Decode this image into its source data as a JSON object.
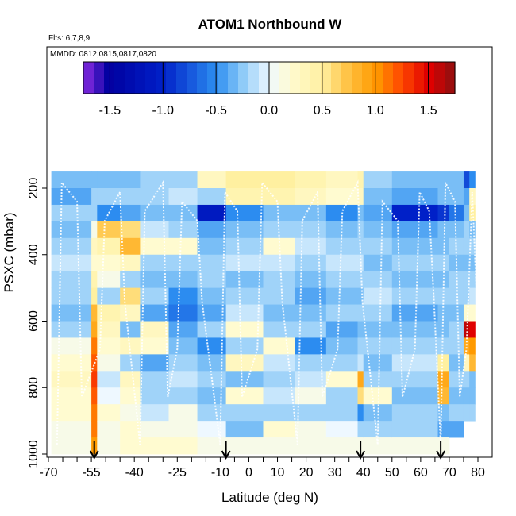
{
  "chart_data": {
    "type": "heatmap",
    "title": "ATOM1 Northbound W",
    "subtitle_flights": "Flts: 6,7,8,9",
    "subtitle_dates": "MMDD: 0812,0815,0817,0820",
    "xlabel": "Latitude (deg N)",
    "ylabel": "PSXC (mbar)",
    "xlim": [
      -70,
      82
    ],
    "ylim": [
      1010,
      160
    ],
    "x_ticks": [
      -70,
      -55,
      -40,
      -25,
      -10,
      0,
      10,
      20,
      30,
      40,
      50,
      60,
      70,
      80
    ],
    "x_tick_labels": [
      "-70",
      "-55",
      "-40",
      "-25",
      "-10",
      "0",
      "10",
      "20",
      "30",
      "40",
      "50",
      "60",
      "70",
      "80"
    ],
    "x_minor_ticks": [
      -65,
      -60,
      -50,
      -45,
      -35,
      -30,
      -20,
      -15,
      -5,
      5,
      15,
      25,
      35,
      45,
      55,
      65,
      75
    ],
    "y_ticks": [
      200,
      400,
      600,
      800,
      1000
    ],
    "y_tick_labels": [
      "200",
      "400",
      "600",
      "800",
      "1000"
    ],
    "colorbar": {
      "min": -1.75,
      "max": 1.75,
      "ticks": [
        -1.5,
        -1.0,
        -0.5,
        0.0,
        0.5,
        1.0,
        1.5
      ],
      "tick_labels": [
        "-1.5",
        "-1.0",
        "-0.5",
        "0.0",
        "0.5",
        "1.0",
        "1.5"
      ],
      "stops": [
        {
          "v": -1.75,
          "c": "#8a2be2"
        },
        {
          "v": -1.5,
          "c": "#0000a0"
        },
        {
          "v": -1.0,
          "c": "#0020c8"
        },
        {
          "v": -0.5,
          "c": "#2c8cf0"
        },
        {
          "v": -0.25,
          "c": "#8ccaf8"
        },
        {
          "v": 0.0,
          "c": "#eef8ff"
        },
        {
          "v": 0.2,
          "c": "#fffbd0"
        },
        {
          "v": 0.5,
          "c": "#fff0a0"
        },
        {
          "v": 0.75,
          "c": "#ffc040"
        },
        {
          "v": 1.0,
          "c": "#ff9a00"
        },
        {
          "v": 1.25,
          "c": "#ff4800"
        },
        {
          "v": 1.5,
          "c": "#e00000"
        },
        {
          "v": 1.75,
          "c": "#8b1010"
        }
      ]
    },
    "pressure_levels": [
      175,
      225,
      275,
      325,
      375,
      425,
      475,
      525,
      575,
      625,
      675,
      725,
      775,
      825,
      875,
      925,
      975
    ],
    "columns": [
      {
        "lat": [
          -69,
          -55
        ],
        "values": [
          -0.3,
          -0.4,
          -0.2,
          -0.3,
          -0.2,
          -0.1,
          -0.2,
          -0.2,
          -0.3,
          -0.2,
          0.1,
          0.2,
          0.3,
          0.2,
          0.2,
          0.1,
          0.1
        ]
      },
      {
        "lat": [
          -55,
          -53
        ],
        "values": [
          -0.3,
          -0.2,
          -0.2,
          0.1,
          0.3,
          0.2,
          0.4,
          0.5,
          0.8,
          0.9,
          1.1,
          1.2,
          1.3,
          1.2,
          1.1,
          1.1,
          1.0
        ]
      },
      {
        "lat": [
          -53,
          -45
        ],
        "values": [
          -0.3,
          -0.2,
          -0.5,
          0.7,
          0.4,
          0.2,
          0.1,
          -0.2,
          0.4,
          0.3,
          0.2,
          0.1,
          -0.1,
          0.0,
          0.2,
          0.1,
          0.1
        ]
      },
      {
        "lat": [
          -45,
          -38
        ],
        "values": [
          -0.3,
          -0.2,
          -0.4,
          0.6,
          0.8,
          0.3,
          -0.2,
          0.6,
          0.3,
          -0.3,
          0.3,
          -0.2,
          0.3,
          0.2,
          0.1,
          0.2,
          0.2
        ]
      },
      {
        "lat": [
          -38,
          -28
        ],
        "values": [
          -0.2,
          -0.2,
          -0.3,
          -0.1,
          0.2,
          -0.2,
          -0.3,
          -0.2,
          -0.4,
          0.3,
          0.2,
          -0.4,
          -0.2,
          -0.2,
          -0.1,
          0.1,
          0.2
        ]
      },
      {
        "lat": [
          -28,
          -18
        ],
        "values": [
          -0.2,
          -0.1,
          -0.3,
          -0.2,
          0.2,
          -0.2,
          -0.3,
          -0.5,
          -0.6,
          -0.4,
          -0.3,
          -0.2,
          -0.1,
          -0.2,
          0.1,
          0.1,
          0.2
        ]
      },
      {
        "lat": [
          -18,
          -8
        ],
        "values": [
          0.3,
          -0.2,
          -1.1,
          -0.4,
          -0.3,
          -0.2,
          -0.2,
          -0.3,
          -0.4,
          -0.2,
          -0.5,
          -0.3,
          -0.2,
          -0.3,
          -0.2,
          0.0,
          0.1
        ]
      },
      {
        "lat": [
          -8,
          5
        ],
        "values": [
          0.5,
          0.4,
          -0.5,
          -0.3,
          -0.2,
          -0.1,
          -0.3,
          -0.2,
          -0.1,
          0.2,
          -0.2,
          0.3,
          -0.3,
          0.2,
          -0.2,
          -0.3,
          0.1
        ]
      },
      {
        "lat": [
          5,
          16
        ],
        "values": [
          0.5,
          0.4,
          -0.3,
          -0.2,
          0.2,
          -0.1,
          -0.2,
          -0.2,
          -0.3,
          -0.2,
          0.2,
          -0.1,
          -0.2,
          -0.1,
          -0.2,
          0.2,
          0.1
        ]
      },
      {
        "lat": [
          16,
          27
        ],
        "values": [
          0.4,
          0.3,
          -0.3,
          -0.2,
          -0.1,
          -0.2,
          -0.3,
          -0.4,
          -0.3,
          -0.2,
          -0.5,
          -0.2,
          -0.1,
          0.1,
          -0.2,
          0.1,
          0.1
        ]
      },
      {
        "lat": [
          27,
          38
        ],
        "values": [
          0.3,
          0.2,
          -0.5,
          -0.3,
          -0.2,
          -0.1,
          -0.2,
          -0.3,
          -0.2,
          -0.4,
          -0.3,
          -0.2,
          0.2,
          -0.2,
          -0.2,
          0.0,
          0.1
        ]
      },
      {
        "lat": [
          38,
          40
        ],
        "values": [
          0.4,
          0.3,
          -0.3,
          -0.2,
          -0.2,
          -0.1,
          -0.2,
          -0.3,
          -0.2,
          -0.3,
          -0.2,
          -0.1,
          0.9,
          0.6,
          -0.5,
          -0.2,
          0.1
        ]
      },
      {
        "lat": [
          40,
          50
        ],
        "values": [
          -0.2,
          -0.3,
          -0.4,
          -0.3,
          -0.2,
          -0.3,
          -0.2,
          -0.1,
          -0.2,
          -0.3,
          -0.2,
          -0.3,
          -0.2,
          0.2,
          -0.3,
          -0.2,
          0.1
        ]
      },
      {
        "lat": [
          50,
          66
        ],
        "values": [
          -0.3,
          -0.4,
          -1.0,
          -0.4,
          -0.3,
          -0.2,
          -0.3,
          -0.2,
          -0.4,
          -0.3,
          -0.2,
          -0.1,
          -0.2,
          -0.3,
          -0.2,
          -0.2,
          0.1
        ]
      },
      {
        "lat": [
          66,
          70
        ],
        "values": [
          -0.3,
          -0.3,
          -0.9,
          -0.3,
          -0.3,
          -0.2,
          -0.3,
          -0.2,
          -0.3,
          -0.3,
          -0.2,
          0.5,
          0.9,
          0.8,
          -0.3,
          -0.4,
          0.1
        ]
      },
      {
        "lat": [
          70,
          75
        ],
        "values": [
          -0.3,
          -0.3,
          -0.6,
          -0.3,
          -0.2,
          -0.3,
          -0.2,
          -0.2,
          -0.3,
          -0.2,
          -0.2,
          -0.3,
          -0.2,
          -0.3,
          -0.2,
          -0.4,
          null
        ]
      },
      {
        "lat": [
          75,
          77
        ],
        "values": [
          -0.8,
          -0.4,
          -0.3,
          -0.2,
          -0.2,
          -0.3,
          -0.2,
          -0.2,
          0.2,
          1.6,
          0.9,
          0.3,
          -0.2,
          -0.3,
          -0.2,
          null,
          null
        ]
      },
      {
        "lat": [
          77,
          79
        ],
        "values": [
          -0.5,
          0.3,
          0.5,
          -0.3,
          -0.2,
          -0.3,
          -0.2,
          -0.1,
          0.2,
          1.5,
          1.0,
          0.8,
          -0.3,
          -0.3,
          -0.2,
          null,
          null
        ]
      }
    ],
    "arrow_latitudes": [
      -54,
      -8,
      39,
      67
    ],
    "flight_track_latitudes_sample": [
      -67,
      -60,
      -52,
      -45,
      -38,
      -30,
      -25,
      -18,
      -10,
      -4,
      3,
      10,
      17,
      24,
      31,
      38,
      45,
      52,
      58,
      63,
      67,
      72,
      76,
      78
    ]
  }
}
